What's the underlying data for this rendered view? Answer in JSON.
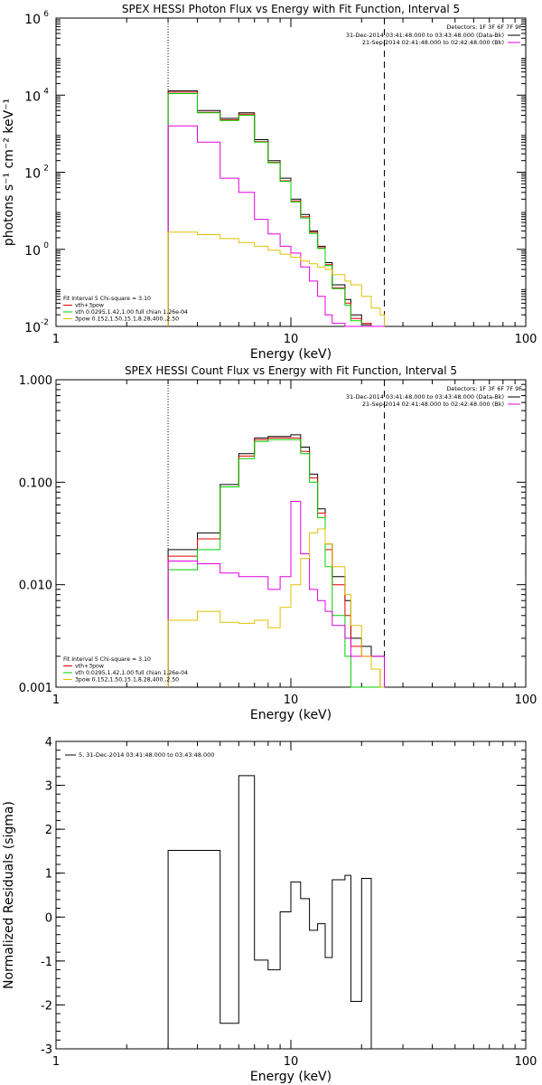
{
  "colors": {
    "black": "#000000",
    "red": "#e00000",
    "green": "#00d000",
    "magenta": "#e000e0",
    "yellow": "#e0c000",
    "bk": "#c00000"
  },
  "chart_data": [
    {
      "type": "line",
      "title": "SPEX HESSI Photon Flux vs Energy with Fit Function, Interval 5",
      "xlabel": "Energy (keV)",
      "ylabel": "photons s⁻¹ cm⁻² keV⁻¹",
      "xscale": "log",
      "yscale": "log",
      "xlim": [
        1,
        100
      ],
      "ylim": [
        0.01,
        1000000
      ],
      "xticks": [
        1,
        10,
        100
      ],
      "xtick_labels": [
        "1",
        "10",
        "100"
      ],
      "yticks": [
        0.01,
        1,
        100,
        10000,
        1000000
      ],
      "ytick_labels": [
        [
          "10",
          "-2"
        ],
        [
          "10",
          "0"
        ],
        [
          "10",
          "2"
        ],
        [
          "10",
          "4"
        ],
        [
          "10",
          "6"
        ]
      ],
      "vlines": [
        {
          "x": 3.0,
          "style": "dotted"
        },
        {
          "x": 25.0,
          "style": "dashed"
        }
      ],
      "x_edges": [
        3,
        4,
        5,
        6,
        7,
        8,
        9,
        10,
        11,
        12,
        13,
        14,
        15,
        17,
        18,
        20,
        22,
        24,
        25
      ],
      "detectors_label": "Detectors: 1F 3F 6F 7F 9F",
      "time_legend": [
        {
          "text": "31-Dec-2014 03:41:48.000 to 03:43:48.000 (Data-Bk)",
          "color": "#000000"
        },
        {
          "text": "21-Sep-2014 02:41:48.000 to 02:42:48.000 (Bk)",
          "color": "#e000e0"
        }
      ],
      "fit_legend": [
        {
          "text": "Fit Interval 5   Chi-square = 3.10",
          "color": null
        },
        {
          "text": "vth+3pow",
          "color": "#e00000"
        },
        {
          "text": "vth 0.0295,1.42,1.00  full chian 1.26e-04",
          "color": "#00d000"
        },
        {
          "text": "3pow 0.152,1.50,15.1,8.28,400.,2.50",
          "color": "#e0c000"
        }
      ],
      "series": [
        {
          "color": "#000000",
          "values": [
            13000,
            4000,
            2500,
            3500,
            700,
            200,
            70,
            20,
            8,
            3,
            1.2,
            0.45,
            0.12,
            0.05,
            0.02,
            0.011,
            0.01,
            0.01
          ]
        },
        {
          "color": "#e00000",
          "values": [
            12000,
            3600,
            2300,
            3200,
            620,
            180,
            60,
            18,
            7,
            2.8,
            1.1,
            0.4,
            0.1,
            0.04,
            0.016,
            0.012,
            0.01,
            0.01
          ]
        },
        {
          "color": "#00d000",
          "values": [
            11000,
            3500,
            2200,
            3000,
            600,
            175,
            58,
            17,
            6.5,
            2.6,
            1.05,
            0.38,
            0.095,
            0.035,
            0.014,
            0.01,
            0.01,
            0.01
          ]
        },
        {
          "color": "#e000e0",
          "values": [
            1600,
            600,
            70,
            30,
            6,
            2.5,
            1.2,
            0.8,
            0.35,
            0.15,
            0.06,
            0.02,
            0.012,
            0.01,
            0.01,
            0.01,
            0.01,
            0.01
          ]
        },
        {
          "color": "#e0c000",
          "values": [
            2.8,
            2.4,
            1.9,
            1.5,
            1.2,
            0.95,
            0.75,
            0.62,
            0.5,
            0.42,
            0.35,
            0.3,
            0.22,
            0.15,
            0.12,
            0.06,
            0.03,
            0.02
          ]
        }
      ]
    },
    {
      "type": "line",
      "title": "SPEX HESSI Count Flux vs Energy with Fit Function, Interval 5",
      "xlabel": "Energy (keV)",
      "ylabel": "",
      "xscale": "log",
      "yscale": "log",
      "xlim": [
        1,
        100
      ],
      "ylim": [
        0.001,
        1.0
      ],
      "xticks": [
        1,
        10,
        100
      ],
      "xtick_labels": [
        "1",
        "10",
        "100"
      ],
      "yticks": [
        0.001,
        0.01,
        0.1,
        1.0
      ],
      "ytick_labels": [
        [
          "0.001",
          ""
        ],
        [
          "0.010",
          ""
        ],
        [
          "0.100",
          ""
        ],
        [
          "1.000",
          ""
        ]
      ],
      "vlines": [
        {
          "x": 3.0,
          "style": "dotted"
        },
        {
          "x": 25.0,
          "style": "dashed"
        }
      ],
      "x_edges": [
        3,
        4,
        5,
        6,
        7,
        8,
        9,
        10,
        11,
        12,
        13,
        14,
        15,
        17,
        18,
        20,
        22,
        24,
        25
      ],
      "detectors_label": "Detectors: 1F 3F 6F 7F 9F",
      "time_legend": [
        {
          "text": "31-Dec-2014 03:41:48.000 to 03:43:48.000 (Data-Bk)",
          "color": "#000000"
        },
        {
          "text": "21-Sep-2014 02:41:48.000 to 02:42:48.000 (Bk)",
          "color": "#e000e0"
        }
      ],
      "fit_legend": [
        {
          "text": "Fit Interval 5   Chi-square = 3.10",
          "color": null
        },
        {
          "text": "vth+3pow",
          "color": "#e00000"
        },
        {
          "text": "vth 0.0295,1.42,1.00  full chian 1.26e-04",
          "color": "#00d000"
        },
        {
          "text": "3pow 0.152,1.50,15.1,8.28,400.,2.50",
          "color": "#e0c000"
        }
      ],
      "series": [
        {
          "color": "#000000",
          "values": [
            0.022,
            0.032,
            0.095,
            0.19,
            0.27,
            0.28,
            0.28,
            0.29,
            0.22,
            0.12,
            0.055,
            0.025,
            0.012,
            0.007,
            0.003,
            0.0025,
            0.002,
            0.002
          ]
        },
        {
          "color": "#e00000",
          "values": [
            0.019,
            0.028,
            0.09,
            0.18,
            0.26,
            0.27,
            0.27,
            0.27,
            0.2,
            0.11,
            0.05,
            0.022,
            0.01,
            0.005,
            0.0025,
            0.002,
            0.0015,
            0.001
          ]
        },
        {
          "color": "#00d000",
          "values": [
            0.014,
            0.022,
            0.09,
            0.17,
            0.25,
            0.26,
            0.26,
            0.26,
            0.19,
            0.1,
            0.045,
            0.015,
            0.005,
            0.002,
            0.001,
            0.001,
            0.001,
            0.001
          ]
        },
        {
          "color": "#e000e0",
          "values": [
            0.017,
            0.016,
            0.013,
            0.012,
            0.012,
            0.009,
            0.012,
            0.065,
            0.02,
            0.009,
            0.007,
            0.0055,
            0.004,
            0.003,
            0.002,
            0.002,
            0.002,
            0.002
          ]
        },
        {
          "color": "#e0c000",
          "values": [
            0.0045,
            0.0055,
            0.0043,
            0.0042,
            0.0045,
            0.0038,
            0.006,
            0.01,
            0.018,
            0.032,
            0.035,
            0.025,
            0.015,
            0.008,
            0.004,
            0.002,
            0.0015,
            0.001
          ]
        }
      ]
    },
    {
      "type": "line",
      "title": "",
      "xlabel": "Energy (keV)",
      "ylabel": "Normalized Residuals (sigma)",
      "xscale": "log",
      "yscale": "linear",
      "xlim": [
        1,
        100
      ],
      "ylim": [
        -3,
        4
      ],
      "xticks": [
        1,
        10,
        100
      ],
      "xtick_labels": [
        "1",
        "10",
        "100"
      ],
      "yticks": [
        -3,
        -2,
        -1,
        0,
        1,
        2,
        3,
        4
      ],
      "ytick_labels": [
        [
          "-3",
          ""
        ],
        [
          "-2",
          ""
        ],
        [
          "-1",
          ""
        ],
        [
          "0",
          ""
        ],
        [
          "1",
          ""
        ],
        [
          "2",
          ""
        ],
        [
          "3",
          ""
        ],
        [
          "4",
          ""
        ]
      ],
      "legend": [
        {
          "text": "5, 31-Dec-2014 03:41:48.000 to 03:43:48.000",
          "color": "#000000"
        }
      ],
      "x_edges": [
        3,
        5,
        6,
        7,
        8,
        9,
        10,
        11,
        12,
        13,
        14,
        15,
        17,
        18,
        20,
        22,
        24,
        25
      ],
      "residuals": [
        1.52,
        -2.42,
        3.22,
        -0.98,
        -1.2,
        0.12,
        0.8,
        0.42,
        -0.3,
        -0.15,
        -0.92,
        0.85,
        0.95,
        -1.92,
        0.88,
        -3.0,
        -3.0
      ]
    }
  ]
}
